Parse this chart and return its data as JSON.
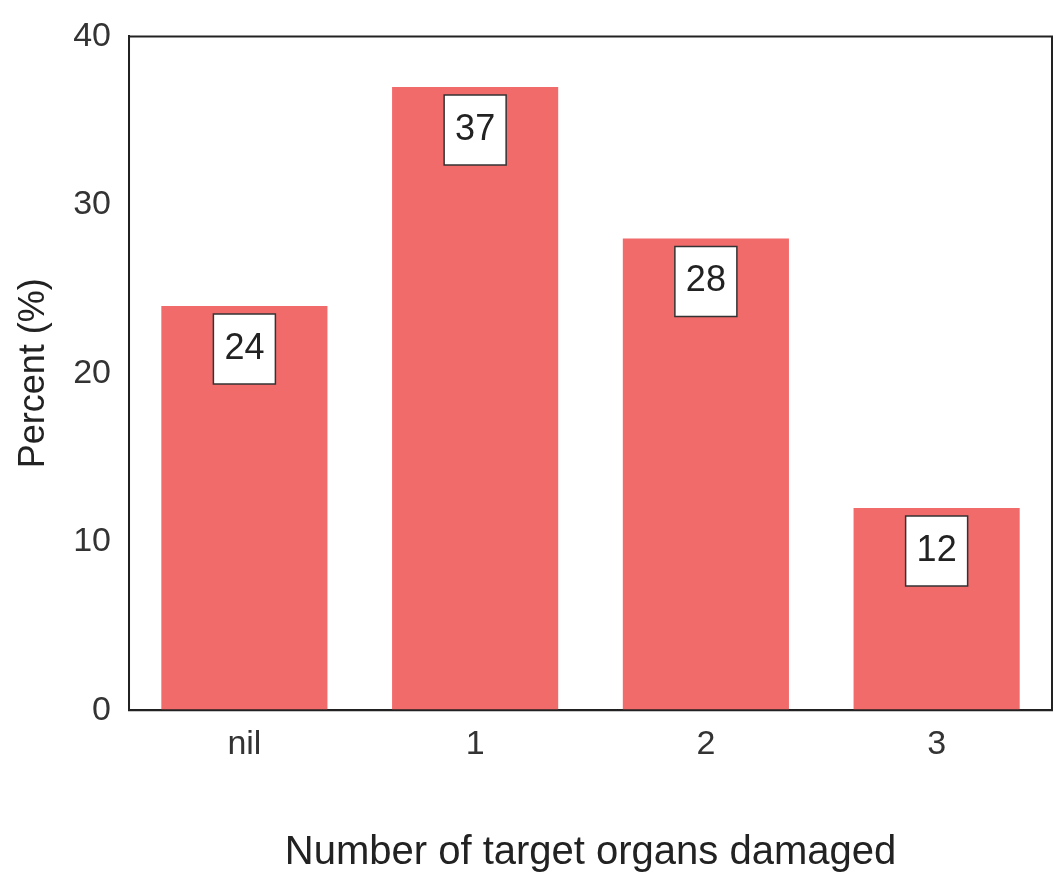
{
  "chart_data": {
    "type": "bar",
    "xlabel": "Number of target organs damaged",
    "ylabel": "Percent (%)",
    "categories": [
      "nil",
      "1",
      "2",
      "3"
    ],
    "values": [
      24,
      37,
      28,
      12
    ],
    "color": "#f26b6b",
    "ylim": [
      0,
      40
    ],
    "yticks": [
      0,
      10,
      20,
      30,
      40
    ],
    "grid": false,
    "legend": false,
    "data_labels": true
  }
}
